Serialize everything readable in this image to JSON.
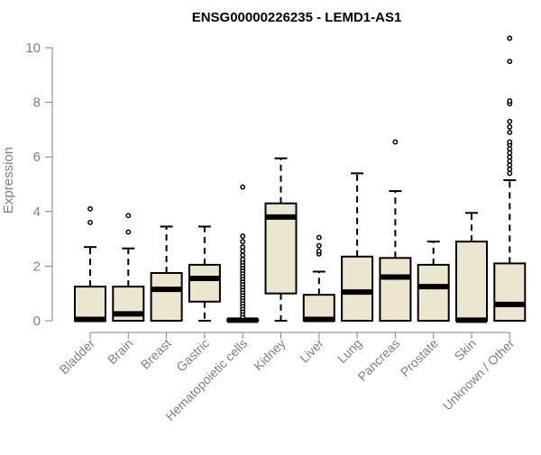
{
  "chart_data": {
    "type": "box",
    "title": "ENSG00000226235 - LEMD1-AS1",
    "ylabel": "Expression",
    "xlabel": "",
    "ylim": [
      0,
      10.4
    ],
    "yticks": [
      0,
      2,
      4,
      6,
      8,
      10
    ],
    "grid": false,
    "legend": "none",
    "colors": {
      "box_fill": "#ede6cf",
      "stroke": "#000000",
      "axis_text": "#808080",
      "title": "#000000"
    },
    "categories": [
      "Bladder",
      "Brain",
      "Breast",
      "Gastric",
      "Hematopoietic cells",
      "Kidney",
      "Liver",
      "Lung",
      "Pancreas",
      "Prostate",
      "Skin",
      "Unknown / Other"
    ],
    "boxes": [
      {
        "q1": 0.0,
        "median": 0.05,
        "q3": 1.25,
        "whisker_low": 0.0,
        "whisker_high": 2.7,
        "outliers": [
          3.6,
          4.1
        ]
      },
      {
        "q1": 0.0,
        "median": 0.25,
        "q3": 1.25,
        "whisker_low": 0.0,
        "whisker_high": 2.65,
        "outliers": [
          3.25,
          3.85
        ]
      },
      {
        "q1": 0.0,
        "median": 1.15,
        "q3": 1.75,
        "whisker_low": 0.0,
        "whisker_high": 3.45,
        "outliers": []
      },
      {
        "q1": 0.7,
        "median": 1.55,
        "q3": 2.05,
        "whisker_low": 0.0,
        "whisker_high": 3.45,
        "outliers": []
      },
      {
        "q1": 0.0,
        "median": 0.02,
        "q3": 0.05,
        "whisker_low": 0.0,
        "whisker_high": 0.05,
        "outliers": [
          0.15,
          0.25,
          0.35,
          0.45,
          0.55,
          0.65,
          0.75,
          0.85,
          0.95,
          1.05,
          1.15,
          1.25,
          1.35,
          1.45,
          1.55,
          1.65,
          1.75,
          1.85,
          1.95,
          2.05,
          2.15,
          2.25,
          2.4,
          2.55,
          2.7,
          2.9,
          3.1,
          4.9
        ]
      },
      {
        "q1": 1.0,
        "median": 3.8,
        "q3": 4.3,
        "whisker_low": 0.0,
        "whisker_high": 5.95,
        "outliers": []
      },
      {
        "q1": 0.0,
        "median": 0.05,
        "q3": 0.95,
        "whisker_low": 0.0,
        "whisker_high": 1.8,
        "outliers": [
          2.45,
          2.55,
          2.75,
          3.05
        ]
      },
      {
        "q1": 0.0,
        "median": 1.05,
        "q3": 2.35,
        "whisker_low": 0.0,
        "whisker_high": 5.4,
        "outliers": []
      },
      {
        "q1": 0.0,
        "median": 1.6,
        "q3": 2.3,
        "whisker_low": 0.0,
        "whisker_high": 4.75,
        "outliers": [
          6.55
        ]
      },
      {
        "q1": 0.0,
        "median": 1.25,
        "q3": 2.05,
        "whisker_low": 0.0,
        "whisker_high": 2.9,
        "outliers": []
      },
      {
        "q1": 0.0,
        "median": 0.02,
        "q3": 2.9,
        "whisker_low": 0.0,
        "whisker_high": 3.95,
        "outliers": []
      },
      {
        "q1": 0.0,
        "median": 0.6,
        "q3": 2.1,
        "whisker_low": 0.0,
        "whisker_high": 5.15,
        "outliers": [
          5.4,
          5.55,
          5.7,
          5.85,
          6.0,
          6.15,
          6.3,
          6.45,
          6.55,
          6.9,
          7.1,
          7.3,
          7.95,
          8.05,
          9.5,
          10.35
        ]
      }
    ]
  }
}
